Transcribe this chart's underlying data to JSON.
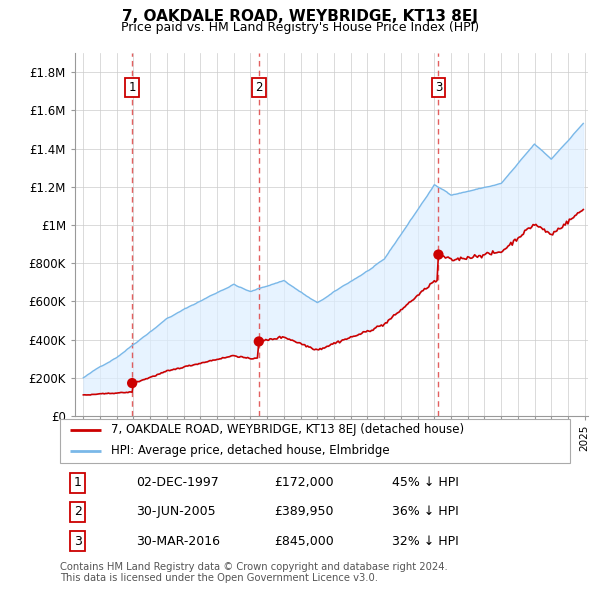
{
  "title": "7, OAKDALE ROAD, WEYBRIDGE, KT13 8EJ",
  "subtitle": "Price paid vs. HM Land Registry's House Price Index (HPI)",
  "legend_line1": "7, OAKDALE ROAD, WEYBRIDGE, KT13 8EJ (detached house)",
  "legend_line2": "HPI: Average price, detached house, Elmbridge",
  "transactions": [
    {
      "num": 1,
      "date": "02-DEC-1997",
      "price": 172000,
      "pct": "45%",
      "x_year": 1997.92
    },
    {
      "num": 2,
      "date": "30-JUN-2005",
      "price": 389950,
      "pct": "36%",
      "x_year": 2005.5
    },
    {
      "num": 3,
      "date": "30-MAR-2016",
      "price": 845000,
      "pct": "32%",
      "x_year": 2016.25
    }
  ],
  "footer": "Contains HM Land Registry data © Crown copyright and database right 2024.\nThis data is licensed under the Open Government Licence v3.0.",
  "hpi_color": "#7ab8e8",
  "hpi_fill_color": "#ddeeff",
  "price_color": "#cc0000",
  "vline_color": "#dd4444",
  "dot_color": "#cc0000",
  "box_color": "#cc0000",
  "ylim": [
    0,
    1900000
  ],
  "xlim": [
    1994.5,
    2025.2
  ],
  "yticks": [
    0,
    200000,
    400000,
    600000,
    800000,
    1000000,
    1200000,
    1400000,
    1600000,
    1800000
  ],
  "ytick_labels": [
    "£0",
    "£200K",
    "£400K",
    "£600K",
    "£800K",
    "£1M",
    "£1.2M",
    "£1.4M",
    "£1.6M",
    "£1.8M"
  ],
  "background_color": "#ffffff",
  "grid_color": "#cccccc",
  "table_rows": [
    [
      1,
      "02-DEC-1997",
      "£172,000",
      "45% ↓ HPI"
    ],
    [
      2,
      "30-JUN-2005",
      "£389,950",
      "36% ↓ HPI"
    ],
    [
      3,
      "30-MAR-2016",
      "£845,000",
      "32% ↓ HPI"
    ]
  ]
}
